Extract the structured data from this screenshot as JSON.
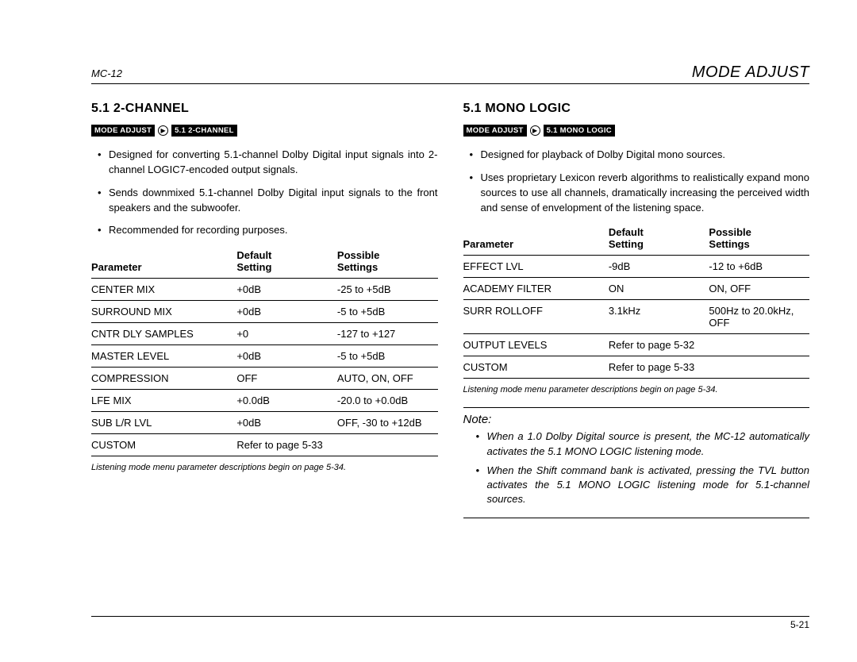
{
  "header": {
    "left": "MC-12",
    "right": "MODE ADJUST"
  },
  "left": {
    "title": "5.1 2-CHANNEL",
    "breadcrumb": {
      "a": "MODE ADJUST",
      "b": "5.1 2-CHANNEL"
    },
    "bullets": [
      "Designed for converting 5.1-channel Dolby Digital input signals into 2-channel LOGIC7-encoded output signals.",
      "Sends downmixed 5.1-channel Dolby Digital input signals to the front speakers and the subwoofer.",
      "Recommended for recording purposes."
    ],
    "table": {
      "headers": {
        "c1": "Parameter",
        "c2a": "Default",
        "c2b": "Setting",
        "c3a": "Possible",
        "c3b": "Settings"
      },
      "rows": [
        {
          "p": "CENTER MIX",
          "d": "+0dB",
          "s": "-25 to +5dB"
        },
        {
          "p": "SURROUND MIX",
          "d": "+0dB",
          "s": "-5 to +5dB"
        },
        {
          "p": "CNTR DLY SAMPLES",
          "d": "+0",
          "s": "-127 to +127"
        },
        {
          "p": "MASTER LEVEL",
          "d": "+0dB",
          "s": "-5 to +5dB"
        },
        {
          "p": "COMPRESSION",
          "d": "OFF",
          "s": "AUTO, ON, OFF"
        },
        {
          "p": "LFE MIX",
          "d": "+0.0dB",
          "s": "-20.0 to +0.0dB"
        },
        {
          "p": "SUB L/R LVL",
          "d": "+0dB",
          "s": "OFF, -30 to +12dB"
        },
        {
          "p": "CUSTOM",
          "d": "Refer to page 5-33",
          "s": ""
        }
      ]
    },
    "footnote": "Listening mode menu parameter descriptions begin on page 5-34."
  },
  "right": {
    "title": "5.1 MONO LOGIC",
    "breadcrumb": {
      "a": "MODE ADJUST",
      "b": "5.1 MONO LOGIC"
    },
    "bullets": [
      "Designed for playback of Dolby Digital mono sources.",
      "Uses proprietary Lexicon reverb algorithms to realistically expand mono sources to use all channels, dramatically increasing the perceived width and sense of envelopment of the listening space."
    ],
    "table": {
      "headers": {
        "c1": "Parameter",
        "c2a": "Default",
        "c2b": "Setting",
        "c3a": "Possible",
        "c3b": "Settings"
      },
      "rows": [
        {
          "p": "EFFECT LVL",
          "d": "-9dB",
          "s": "-12 to +6dB"
        },
        {
          "p": "ACADEMY FILTER",
          "d": "ON",
          "s": "ON, OFF"
        },
        {
          "p": "SURR ROLLOFF",
          "d": "3.1kHz",
          "s": "500Hz to 20.0kHz, OFF"
        },
        {
          "p": "OUTPUT LEVELS",
          "d": "Refer to page 5-32",
          "s": ""
        },
        {
          "p": "CUSTOM",
          "d": "Refer to page 5-33",
          "s": ""
        }
      ]
    },
    "footnote": "Listening mode menu parameter descriptions begin on page 5-34.",
    "note": {
      "title": "Note:",
      "items": [
        "When a 1.0 Dolby Digital source is present, the MC-12 automatically activates the 5.1 MONO LOGIC listening mode.",
        "When the Shift command bank is activated, pressing the TVL button activates the 5.1 MONO LOGIC listening mode for 5.1-channel sources."
      ]
    }
  },
  "pageNumber": "5-21"
}
